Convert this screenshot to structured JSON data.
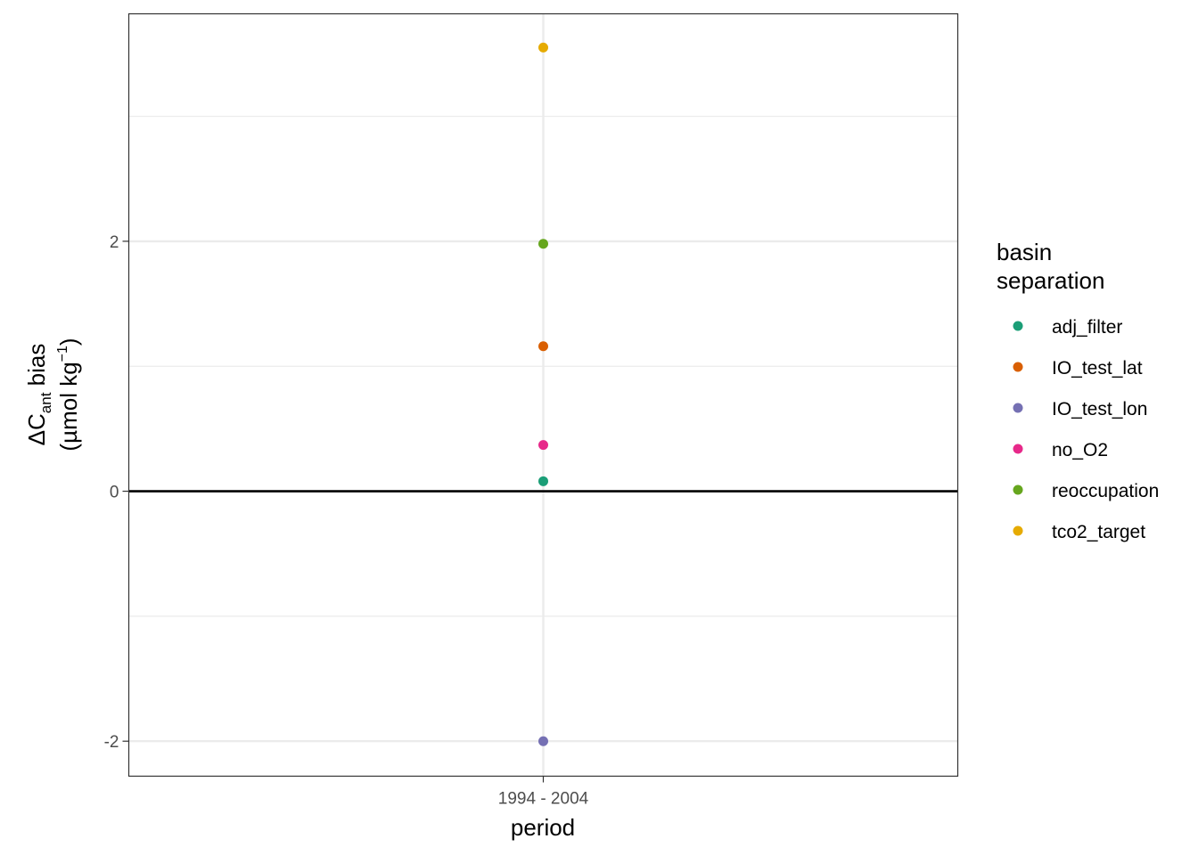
{
  "chart_data": {
    "type": "scatter",
    "categories": [
      "1994 - 2004"
    ],
    "series": [
      {
        "name": "adj_filter",
        "color": "#1B9E77",
        "values": [
          0.08
        ]
      },
      {
        "name": "IO_test_lat",
        "color": "#D95F02",
        "values": [
          1.16
        ]
      },
      {
        "name": "IO_test_lon",
        "color": "#7570B3",
        "values": [
          -2.0
        ]
      },
      {
        "name": "no_O2",
        "color": "#E7298A",
        "values": [
          0.37
        ]
      },
      {
        "name": "reoccupation",
        "color": "#66A61E",
        "values": [
          1.98
        ]
      },
      {
        "name": "tco2_target",
        "color": "#E6AB02",
        "values": [
          3.55
        ]
      }
    ],
    "xlabel": "period",
    "ylabel": {
      "delta": "ΔC",
      "subscript": "ant",
      "suffix": " bias",
      "line2_prefix": "(µmol kg",
      "superscript": "−1",
      "line2_suffix": ")"
    },
    "ylim": [
      -2.28,
      3.82
    ],
    "y_ticks": [
      -2,
      0,
      2
    ],
    "y_tick_labels": [
      "-2",
      "0",
      "2"
    ],
    "y_minor_ticks": [
      -1,
      1,
      3
    ],
    "reference_line_y": 0,
    "grid": true,
    "legend": {
      "title_lines": [
        "basin",
        "separation"
      ],
      "position": "right"
    }
  }
}
